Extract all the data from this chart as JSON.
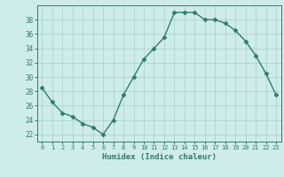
{
  "x": [
    0,
    1,
    2,
    3,
    4,
    5,
    6,
    7,
    8,
    9,
    10,
    11,
    12,
    13,
    14,
    15,
    16,
    17,
    18,
    19,
    20,
    21,
    22,
    23
  ],
  "y": [
    28.5,
    26.5,
    25.0,
    24.5,
    23.5,
    23.0,
    22.0,
    24.0,
    27.5,
    30.0,
    32.5,
    34.0,
    35.5,
    39.0,
    39.0,
    39.0,
    38.0,
    38.0,
    37.5,
    36.5,
    35.0,
    33.0,
    30.5,
    27.5
  ],
  "xlabel": "Humidex (Indice chaleur)",
  "xlim": [
    -0.5,
    23.5
  ],
  "ylim": [
    21.0,
    40.0
  ],
  "yticks": [
    22,
    24,
    26,
    28,
    30,
    32,
    34,
    36,
    38
  ],
  "xticks": [
    0,
    1,
    2,
    3,
    4,
    5,
    6,
    7,
    8,
    9,
    10,
    11,
    12,
    13,
    14,
    15,
    16,
    17,
    18,
    19,
    20,
    21,
    22,
    23
  ],
  "line_color": "#2e7d6e",
  "marker": "D",
  "marker_size": 2.5,
  "bg_color": "#ceecea",
  "grid_color": "#aed8d4",
  "tick_color": "#2e7d6e",
  "spine_color": "#2e7d6e",
  "line_width": 1.0
}
